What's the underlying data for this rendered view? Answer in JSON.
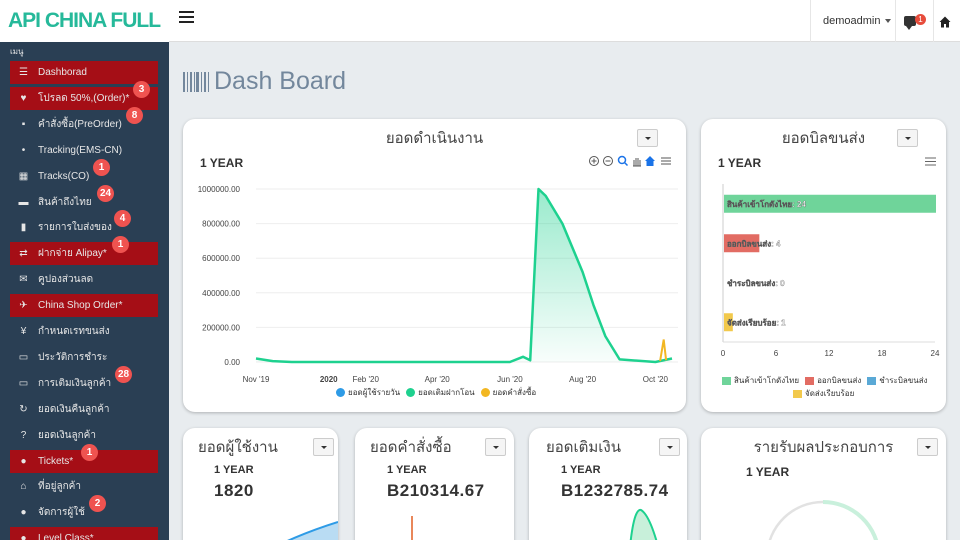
{
  "brand": "API CHINA FULL",
  "header": {
    "user": "demoadmin",
    "messages_badge": "1"
  },
  "sidebar": {
    "heading": "เมนู",
    "items": [
      {
        "label": "Dashborad",
        "icon": "bars-icon",
        "active": true
      },
      {
        "label": "โปรลด 50%,(Order)*",
        "icon": "heart-icon",
        "active": true,
        "badge": "3"
      },
      {
        "label": "คำสั่งซื้อ(PreOrder)",
        "icon": "cart-icon",
        "badge": "8"
      },
      {
        "label": "Tracking(EMS-CN)",
        "icon": "map-pin-icon"
      },
      {
        "label": "Tracks(CO)",
        "icon": "barcode-icon",
        "badge": "1"
      },
      {
        "label": "สินค้าถึงไทย",
        "icon": "truck-icon",
        "badge": "24"
      },
      {
        "label": "รายการใบส่งของ",
        "icon": "file-icon",
        "badge": "4"
      },
      {
        "label": "ฝากจ่าย Alipay*",
        "icon": "exchange-icon",
        "active": true,
        "badge": "1"
      },
      {
        "label": "คูปองส่วนลด",
        "icon": "envelope-icon"
      },
      {
        "label": "China Shop Order*",
        "icon": "plane-icon",
        "active": true
      },
      {
        "label": "กำหนดเรทขนส่ง",
        "icon": "yen-icon"
      },
      {
        "label": "ประวัติการชำระ",
        "icon": "money-icon"
      },
      {
        "label": "การเติมเงินลูกค้า",
        "icon": "credit-card-icon",
        "badge": "28"
      },
      {
        "label": "ยอดเงินคืนลูกค้า",
        "icon": "refresh-icon"
      },
      {
        "label": "ยอดเงินลูกค้า",
        "icon": "question-icon"
      },
      {
        "label": "Tickets*",
        "icon": "comments-icon",
        "active": true,
        "badge": "1"
      },
      {
        "label": "ที่อยู่ลูกค้า",
        "icon": "home-icon"
      },
      {
        "label": "จัดการผู้ใช้",
        "icon": "users-icon",
        "badge": "2"
      },
      {
        "label": "Level Class*",
        "icon": "circle-icon",
        "active": true
      }
    ]
  },
  "page_title": "Dash Board",
  "panels": {
    "sales": {
      "title": "ยอดดำเนินงาน",
      "range": "1 YEAR"
    },
    "bills": {
      "title": "ยอดบิลขนส่ง",
      "range": "1 YEAR"
    },
    "users": {
      "title": "ยอดผู้ใช้งาน",
      "range": "1 YEAR",
      "value": "1820"
    },
    "orders": {
      "title": "ยอดคำสั่งซื้อ",
      "range": "1 YEAR",
      "value": "B210314.67"
    },
    "topup": {
      "title": "ยอดเติมเงิน",
      "range": "1 YEAR",
      "value": "B1232785.74"
    },
    "income": {
      "title": "รายรับผลประกอบการ",
      "range": "1 YEAR"
    }
  },
  "chart_data": [
    {
      "type": "area",
      "title": "ยอดดำเนินงาน",
      "x_ticks": [
        "Nov '19",
        "2020",
        "Feb '20",
        "Apr '20",
        "Jun '20",
        "Aug '20",
        "Oct '20"
      ],
      "y_ticks": [
        "0.00",
        "200000.00",
        "400000.00",
        "600000.00",
        "800000.00",
        "1000000.00"
      ],
      "ylim": [
        0,
        1000000
      ],
      "series": [
        {
          "name": "ยอดผู้ใช้รายวัน",
          "color": "#2e9be6",
          "values": []
        },
        {
          "name": "ยอดเติมฝากโอน",
          "color": "#1ed18f",
          "x": [
            "2019-11-01",
            "2019-11-15",
            "2019-12-01",
            "2020-01-01",
            "2020-02-01",
            "2020-03-01",
            "2020-04-01",
            "2020-05-01",
            "2020-06-01",
            "2020-06-12",
            "2020-06-18",
            "2020-06-25",
            "2020-07-01",
            "2020-07-15",
            "2020-08-01",
            "2020-08-10",
            "2020-08-20",
            "2020-09-01",
            "2020-10-01",
            "2020-10-15"
          ],
          "values": [
            20000,
            5000,
            0,
            0,
            0,
            0,
            0,
            0,
            0,
            30000,
            10000,
            1000000,
            960000,
            800000,
            520000,
            330000,
            150000,
            15000,
            0,
            20000
          ]
        },
        {
          "name": "ยอดคำสั่งซื้อ",
          "color": "#f2b722",
          "x": [
            "2020-10-05",
            "2020-10-08",
            "2020-10-10"
          ],
          "values": [
            5000,
            130000,
            10000
          ]
        }
      ]
    },
    {
      "type": "bar",
      "title": "ยอดบิลขนส่ง",
      "orientation": "horizontal",
      "categories": [
        "สินค้าเข้าโกดังไทย",
        "ออกบิลขนส่ง",
        "ชำระบิลขนส่ง",
        "จัดส่งเรียบร้อย"
      ],
      "values": [
        24,
        4,
        0,
        1
      ],
      "data_labels": [
        "สินค้าเข้าโกดังไทย: 24",
        "ออกบิลขนส่ง: 4",
        "ชำระบิลขนส่ง: 0",
        "จัดส่งเรียบร้อย: 1"
      ],
      "colors": [
        "#6fd49a",
        "#e26c63",
        "#5aa9d6",
        "#f2c94c"
      ],
      "x_ticks": [
        "0",
        "6",
        "12",
        "18",
        "24"
      ],
      "xlim": [
        0,
        24
      ]
    }
  ]
}
